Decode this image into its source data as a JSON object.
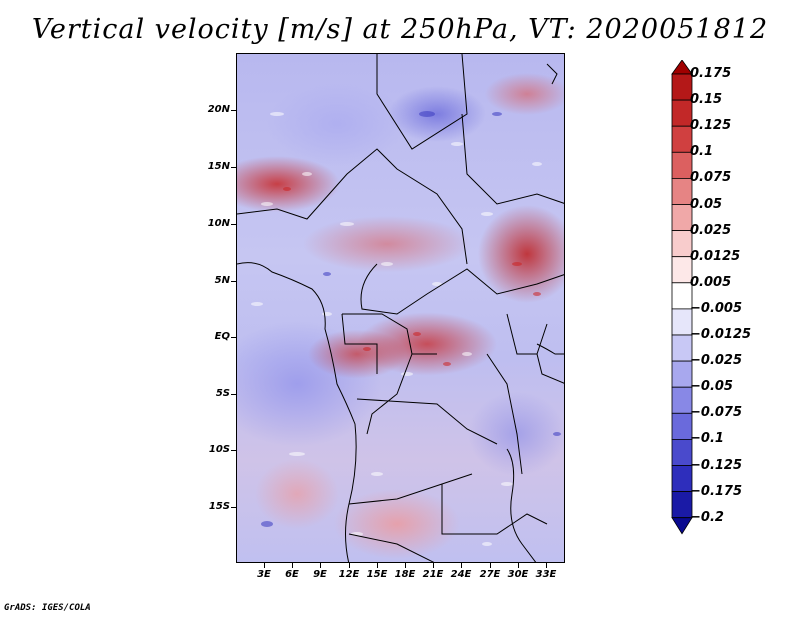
{
  "title": "Vertical velocity [m/s] at 250hPa, VT: 2020051812",
  "lat_labels": [
    "20N",
    "15N",
    "10N",
    "5N",
    "EQ",
    "5S",
    "10S",
    "15S"
  ],
  "lon_labels": [
    "3E",
    "6E",
    "9E",
    "12E",
    "15E",
    "18E",
    "21E",
    "24E",
    "27E",
    "30E",
    "33E"
  ],
  "colorbar": {
    "labels": [
      "0.175",
      "0.15",
      "0.125",
      "0.1",
      "0.075",
      "0.05",
      "0.025",
      "0.0125",
      "0.005",
      "−0.005",
      "−0.0125",
      "−0.025",
      "−0.05",
      "−0.075",
      "−0.1",
      "−0.125",
      "−0.175",
      "−0.2"
    ],
    "colors": [
      "#a00000",
      "#b41818",
      "#c22828",
      "#d04040",
      "#dc6060",
      "#e68484",
      "#f0a8a8",
      "#f8cccc",
      "#fde8e8",
      "#ffffff",
      "#e6e6fa",
      "#c8c8f5",
      "#a8a8ee",
      "#8888e6",
      "#6a6adc",
      "#4a4acc",
      "#2e2ebc",
      "#1a1aa6",
      "#0a0a90"
    ]
  },
  "footer": "GrADS: IGES/COLA"
}
